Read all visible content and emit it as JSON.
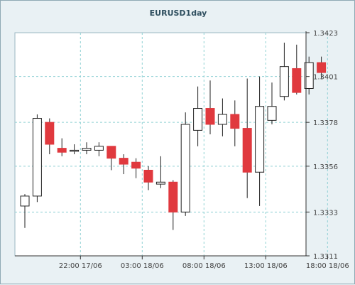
{
  "chart_data": {
    "type": "candlestick",
    "title": "EURUSD1day",
    "grid": true,
    "ylim": [
      1.3311,
      1.3423
    ],
    "y_ticks": [
      "1.3311",
      "1.3333",
      "1.3356",
      "1.3378",
      "1.3401",
      "1.3423"
    ],
    "x_ticks": [
      {
        "label": "22:00 17/06",
        "at": 4.5
      },
      {
        "label": "03:00 18/06",
        "at": 9.5
      },
      {
        "label": "08:00 18/06",
        "at": 14.5
      },
      {
        "label": "13:00 18/06",
        "at": 19.5
      },
      {
        "label": "18:00 18/06",
        "at": 24.5
      }
    ],
    "colors": {
      "up": "#ffffff",
      "down": "#e0393e",
      "outline": "#222222"
    },
    "candles": [
      {
        "o": 1.3336,
        "h": 1.3342,
        "l": 1.3325,
        "c": 1.3341
      },
      {
        "o": 1.3341,
        "h": 1.3382,
        "l": 1.3338,
        "c": 1.338
      },
      {
        "o": 1.3378,
        "h": 1.338,
        "l": 1.3362,
        "c": 1.3367
      },
      {
        "o": 1.3365,
        "h": 1.337,
        "l": 1.3361,
        "c": 1.3363
      },
      {
        "o": 1.3364,
        "h": 1.3367,
        "l": 1.3362,
        "c": 1.3364
      },
      {
        "o": 1.3364,
        "h": 1.3368,
        "l": 1.3362,
        "c": 1.3365
      },
      {
        "o": 1.3364,
        "h": 1.3368,
        "l": 1.3361,
        "c": 1.3366
      },
      {
        "o": 1.3366,
        "h": 1.3366,
        "l": 1.3354,
        "c": 1.336
      },
      {
        "o": 1.336,
        "h": 1.3362,
        "l": 1.3352,
        "c": 1.3357
      },
      {
        "o": 1.3358,
        "h": 1.336,
        "l": 1.335,
        "c": 1.3355
      },
      {
        "o": 1.3354,
        "h": 1.3356,
        "l": 1.3344,
        "c": 1.3348
      },
      {
        "o": 1.3347,
        "h": 1.3361,
        "l": 1.3345,
        "c": 1.3348
      },
      {
        "o": 1.3348,
        "h": 1.3349,
        "l": 1.3324,
        "c": 1.3333
      },
      {
        "o": 1.3333,
        "h": 1.3383,
        "l": 1.3331,
        "c": 1.3377
      },
      {
        "o": 1.3374,
        "h": 1.3396,
        "l": 1.3366,
        "c": 1.3385
      },
      {
        "o": 1.3385,
        "h": 1.3399,
        "l": 1.3372,
        "c": 1.3377
      },
      {
        "o": 1.3377,
        "h": 1.339,
        "l": 1.3371,
        "c": 1.3382
      },
      {
        "o": 1.3382,
        "h": 1.3389,
        "l": 1.3366,
        "c": 1.3375
      },
      {
        "o": 1.3375,
        "h": 1.34,
        "l": 1.334,
        "c": 1.3353
      },
      {
        "o": 1.3353,
        "h": 1.3401,
        "l": 1.3336,
        "c": 1.3386
      },
      {
        "o": 1.3379,
        "h": 1.3398,
        "l": 1.3377,
        "c": 1.3386
      },
      {
        "o": 1.3391,
        "h": 1.3418,
        "l": 1.3389,
        "c": 1.3406
      },
      {
        "o": 1.3405,
        "h": 1.3417,
        "l": 1.3392,
        "c": 1.3393
      },
      {
        "o": 1.3395,
        "h": 1.3411,
        "l": 1.3392,
        "c": 1.3408
      },
      {
        "o": 1.3408,
        "h": 1.3411,
        "l": 1.34,
        "c": 1.3403
      }
    ]
  }
}
